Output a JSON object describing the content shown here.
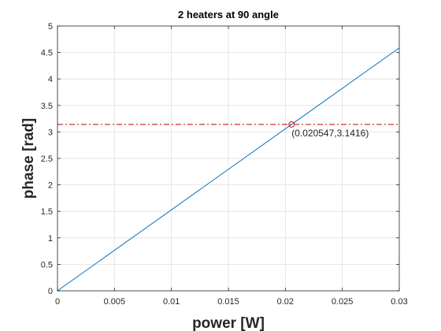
{
  "chart_data": {
    "type": "line",
    "title": "2 heaters at 90 angle",
    "xlabel": "power [W]",
    "ylabel": "phase [rad]",
    "xlim": [
      0,
      0.03
    ],
    "ylim": [
      0,
      5
    ],
    "xticks": [
      0,
      0.005,
      0.01,
      0.015,
      0.02,
      0.025,
      0.03
    ],
    "xtick_labels": [
      "0",
      "0.005",
      "0.01",
      "0.015",
      "0.02",
      "0.025",
      "0.03"
    ],
    "yticks": [
      0,
      0.5,
      1,
      1.5,
      2,
      2.5,
      3,
      3.5,
      4,
      4.5,
      5
    ],
    "ytick_labels": [
      "0",
      "0.5",
      "1",
      "1.5",
      "2",
      "2.5",
      "3",
      "3.5",
      "4",
      "4.5",
      "5"
    ],
    "grid": true,
    "series": [
      {
        "color": "#0072bd",
        "style": "solid",
        "x": [
          0,
          0.03
        ],
        "y": [
          0,
          4.587
        ]
      }
    ],
    "reference_line": {
      "y": 3.1416,
      "color": "#c00000",
      "style": "dash-dot"
    },
    "marker": {
      "x": 0.020547,
      "y": 3.1416,
      "shape": "circle",
      "color": "#e0302a"
    },
    "annotation": {
      "text": "(0.020547,3.1416)",
      "x": 0.020547,
      "y": 3.1416
    }
  }
}
